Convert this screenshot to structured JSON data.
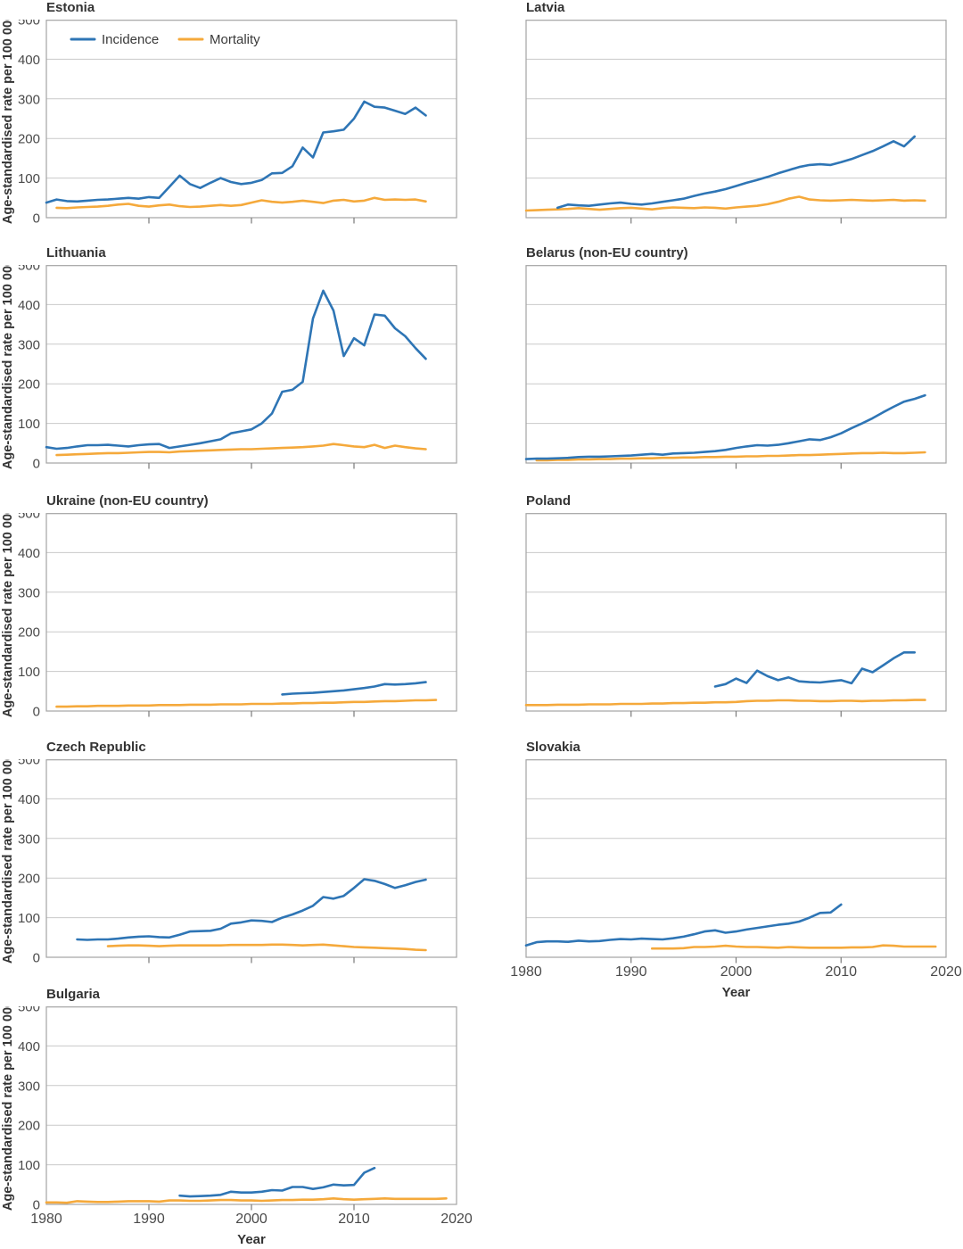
{
  "figure": {
    "y_axis_label": "Age-standardised rate per 100 000",
    "x_axis_label": "Year",
    "y_ticks": [
      0,
      100,
      200,
      300,
      400,
      500
    ],
    "x_ticks": [
      1980,
      1990,
      2000,
      2010,
      2020
    ],
    "colors": {
      "incidence": "#2E75B5",
      "mortality": "#F5A93B"
    },
    "legend": [
      {
        "label": "Incidence",
        "color": "#2E75B5"
      },
      {
        "label": "Mortality",
        "color": "#F5A93B"
      }
    ]
  },
  "chart_data": [
    {
      "type": "line",
      "title": "Estonia",
      "xlabel": "Year",
      "ylabel": "Age-standardised rate per 100 000",
      "xlim": [
        1980,
        2020
      ],
      "ylim": [
        0,
        500
      ],
      "series": [
        {
          "name": "Incidence",
          "start_year": 1980,
          "values": [
            38,
            46,
            42,
            41,
            43,
            45,
            46,
            48,
            50,
            48,
            52,
            50,
            78,
            106,
            85,
            75,
            88,
            100,
            90,
            85,
            88,
            95,
            112,
            113,
            130,
            177,
            152,
            215,
            218,
            222,
            250,
            293,
            280,
            278,
            270,
            262,
            278,
            258
          ]
        },
        {
          "name": "Mortality",
          "start_year": 1981,
          "values": [
            25,
            24,
            26,
            27,
            28,
            30,
            33,
            35,
            30,
            28,
            31,
            33,
            29,
            27,
            28,
            30,
            32,
            30,
            32,
            38,
            44,
            40,
            38,
            40,
            43,
            40,
            37,
            43,
            45,
            41,
            43,
            50,
            45,
            46,
            45,
            46,
            41
          ]
        }
      ]
    },
    {
      "type": "line",
      "title": "Latvia",
      "xlabel": "Year",
      "ylabel": "Age-standardised rate per 100 000",
      "xlim": [
        1980,
        2020
      ],
      "ylim": [
        0,
        500
      ],
      "series": [
        {
          "name": "Incidence",
          "start_year": 1983,
          "values": [
            25,
            33,
            31,
            30,
            33,
            36,
            38,
            35,
            33,
            36,
            40,
            44,
            48,
            55,
            61,
            66,
            72,
            80,
            88,
            95,
            103,
            112,
            120,
            128,
            133,
            135,
            133,
            140,
            148,
            158,
            168,
            180,
            193,
            180,
            205
          ]
        },
        {
          "name": "Mortality",
          "start_year": 1980,
          "values": [
            18,
            19,
            20,
            21,
            22,
            24,
            22,
            20,
            22,
            24,
            25,
            23,
            21,
            24,
            26,
            25,
            24,
            26,
            25,
            23,
            26,
            28,
            30,
            34,
            40,
            48,
            53,
            46,
            44,
            43,
            44,
            45,
            44,
            43,
            44,
            45,
            43,
            44,
            43
          ]
        }
      ]
    },
    {
      "type": "line",
      "title": "Lithuania",
      "xlabel": "Year",
      "ylabel": "Age-standardised rate per 100 000",
      "xlim": [
        1980,
        2020
      ],
      "ylim": [
        0,
        500
      ],
      "series": [
        {
          "name": "Incidence",
          "start_year": 1980,
          "values": [
            40,
            36,
            38,
            42,
            45,
            45,
            46,
            44,
            42,
            45,
            47,
            48,
            38,
            42,
            46,
            50,
            55,
            60,
            75,
            80,
            85,
            100,
            125,
            180,
            185,
            205,
            365,
            435,
            385,
            270,
            315,
            297,
            375,
            372,
            340,
            320,
            290,
            263
          ]
        },
        {
          "name": "Mortality",
          "start_year": 1981,
          "values": [
            20,
            21,
            22,
            23,
            24,
            25,
            25,
            26,
            27,
            28,
            28,
            27,
            29,
            30,
            31,
            32,
            33,
            34,
            35,
            35,
            36,
            37,
            38,
            39,
            40,
            42,
            44,
            48,
            45,
            42,
            40,
            46,
            38,
            44,
            40,
            37,
            35
          ]
        }
      ]
    },
    {
      "type": "line",
      "title": "Belarus (non-EU country)",
      "xlabel": "Year",
      "ylabel": "Age-standardised rate per 100 000",
      "xlim": [
        1980,
        2020
      ],
      "ylim": [
        0,
        500
      ],
      "series": [
        {
          "name": "Incidence",
          "start_year": 1980,
          "values": [
            10,
            11,
            11,
            12,
            13,
            15,
            16,
            16,
            17,
            18,
            19,
            21,
            23,
            21,
            24,
            25,
            26,
            28,
            30,
            33,
            38,
            42,
            45,
            44,
            46,
            50,
            55,
            60,
            58,
            65,
            75,
            88,
            100,
            113,
            128,
            142,
            155,
            162,
            171
          ]
        },
        {
          "name": "Mortality",
          "start_year": 1981,
          "values": [
            7,
            7,
            8,
            8,
            9,
            9,
            10,
            10,
            11,
            11,
            12,
            12,
            13,
            13,
            14,
            14,
            15,
            15,
            16,
            16,
            17,
            17,
            18,
            18,
            19,
            20,
            20,
            21,
            22,
            23,
            24,
            25,
            25,
            26,
            25,
            25,
            26,
            27
          ]
        }
      ]
    },
    {
      "type": "line",
      "title": "Ukraine (non-EU country)",
      "xlabel": "Year",
      "ylabel": "Age-standardised rate per 100 000",
      "xlim": [
        1980,
        2020
      ],
      "ylim": [
        0,
        500
      ],
      "series": [
        {
          "name": "Incidence",
          "start_year": 2003,
          "values": [
            42,
            44,
            45,
            46,
            48,
            50,
            52,
            55,
            58,
            62,
            68,
            67,
            68,
            70,
            73
          ]
        },
        {
          "name": "Mortality",
          "start_year": 1981,
          "values": [
            11,
            11,
            12,
            12,
            13,
            13,
            13,
            14,
            14,
            14,
            15,
            15,
            15,
            16,
            16,
            16,
            17,
            17,
            17,
            18,
            18,
            18,
            19,
            19,
            20,
            20,
            21,
            21,
            22,
            23,
            23,
            24,
            25,
            25,
            26,
            27,
            27,
            28
          ]
        }
      ]
    },
    {
      "type": "line",
      "title": "Poland",
      "xlabel": "Year",
      "ylabel": "Age-standardised rate per 100 000",
      "xlim": [
        1980,
        2020
      ],
      "ylim": [
        0,
        500
      ],
      "series": [
        {
          "name": "Incidence",
          "start_year": 1998,
          "values": [
            62,
            68,
            82,
            71,
            102,
            88,
            78,
            85,
            75,
            73,
            72,
            75,
            78,
            70,
            107,
            98,
            115,
            133,
            148,
            148
          ]
        },
        {
          "name": "Mortality",
          "start_year": 1980,
          "values": [
            15,
            15,
            15,
            16,
            16,
            16,
            17,
            17,
            17,
            18,
            18,
            18,
            19,
            19,
            20,
            20,
            21,
            21,
            22,
            22,
            23,
            25,
            26,
            26,
            27,
            27,
            26,
            26,
            25,
            25,
            26,
            26,
            25,
            26,
            26,
            27,
            27,
            28,
            28
          ]
        }
      ]
    },
    {
      "type": "line",
      "title": "Czech Republic",
      "xlabel": "Year",
      "ylabel": "Age-standardised rate per 100 000",
      "xlim": [
        1980,
        2020
      ],
      "ylim": [
        0,
        500
      ],
      "series": [
        {
          "name": "Incidence",
          "start_year": 1983,
          "values": [
            45,
            44,
            45,
            45,
            47,
            50,
            52,
            53,
            51,
            50,
            57,
            65,
            66,
            67,
            72,
            85,
            88,
            93,
            92,
            89,
            100,
            108,
            118,
            130,
            152,
            148,
            155,
            175,
            197,
            193,
            185,
            175,
            182,
            190,
            196
          ]
        },
        {
          "name": "Mortality",
          "start_year": 1986,
          "values": [
            28,
            29,
            30,
            30,
            29,
            28,
            29,
            30,
            30,
            30,
            30,
            30,
            31,
            31,
            31,
            31,
            32,
            32,
            31,
            30,
            31,
            32,
            30,
            28,
            26,
            25,
            24,
            23,
            22,
            21,
            19,
            18
          ]
        }
      ]
    },
    {
      "type": "line",
      "title": "Slovakia",
      "xlabel": "Year",
      "ylabel": "Age-standardised rate per 100 000",
      "xlim": [
        1980,
        2020
      ],
      "ylim": [
        0,
        500
      ],
      "series": [
        {
          "name": "Incidence",
          "start_year": 1980,
          "values": [
            30,
            38,
            40,
            40,
            39,
            42,
            40,
            41,
            44,
            46,
            45,
            47,
            46,
            45,
            48,
            52,
            58,
            65,
            68,
            62,
            65,
            70,
            74,
            78,
            82,
            85,
            90,
            100,
            112,
            113,
            133
          ]
        },
        {
          "name": "Mortality",
          "start_year": 1992,
          "values": [
            22,
            22,
            22,
            23,
            26,
            26,
            27,
            29,
            27,
            26,
            26,
            25,
            24,
            26,
            25,
            24,
            24,
            24,
            24,
            25,
            25,
            26,
            30,
            29,
            27,
            27,
            27,
            27
          ]
        }
      ]
    },
    {
      "type": "line",
      "title": "Bulgaria",
      "xlabel": "Year",
      "ylabel": "Age-standardised rate per 100 000",
      "xlim": [
        1980,
        2020
      ],
      "ylim": [
        0,
        500
      ],
      "series": [
        {
          "name": "Incidence",
          "start_year": 1993,
          "values": [
            22,
            20,
            21,
            22,
            24,
            32,
            30,
            30,
            32,
            36,
            35,
            44,
            44,
            39,
            43,
            50,
            48,
            49,
            80,
            92
          ]
        },
        {
          "name": "Mortality",
          "start_year": 1980,
          "values": [
            5,
            5,
            4,
            8,
            7,
            6,
            6,
            7,
            8,
            8,
            8,
            7,
            10,
            10,
            9,
            9,
            10,
            11,
            11,
            10,
            10,
            9,
            10,
            11,
            11,
            12,
            12,
            13,
            15,
            13,
            12,
            13,
            14,
            15,
            14,
            14,
            14,
            14,
            14,
            15
          ]
        }
      ]
    }
  ]
}
